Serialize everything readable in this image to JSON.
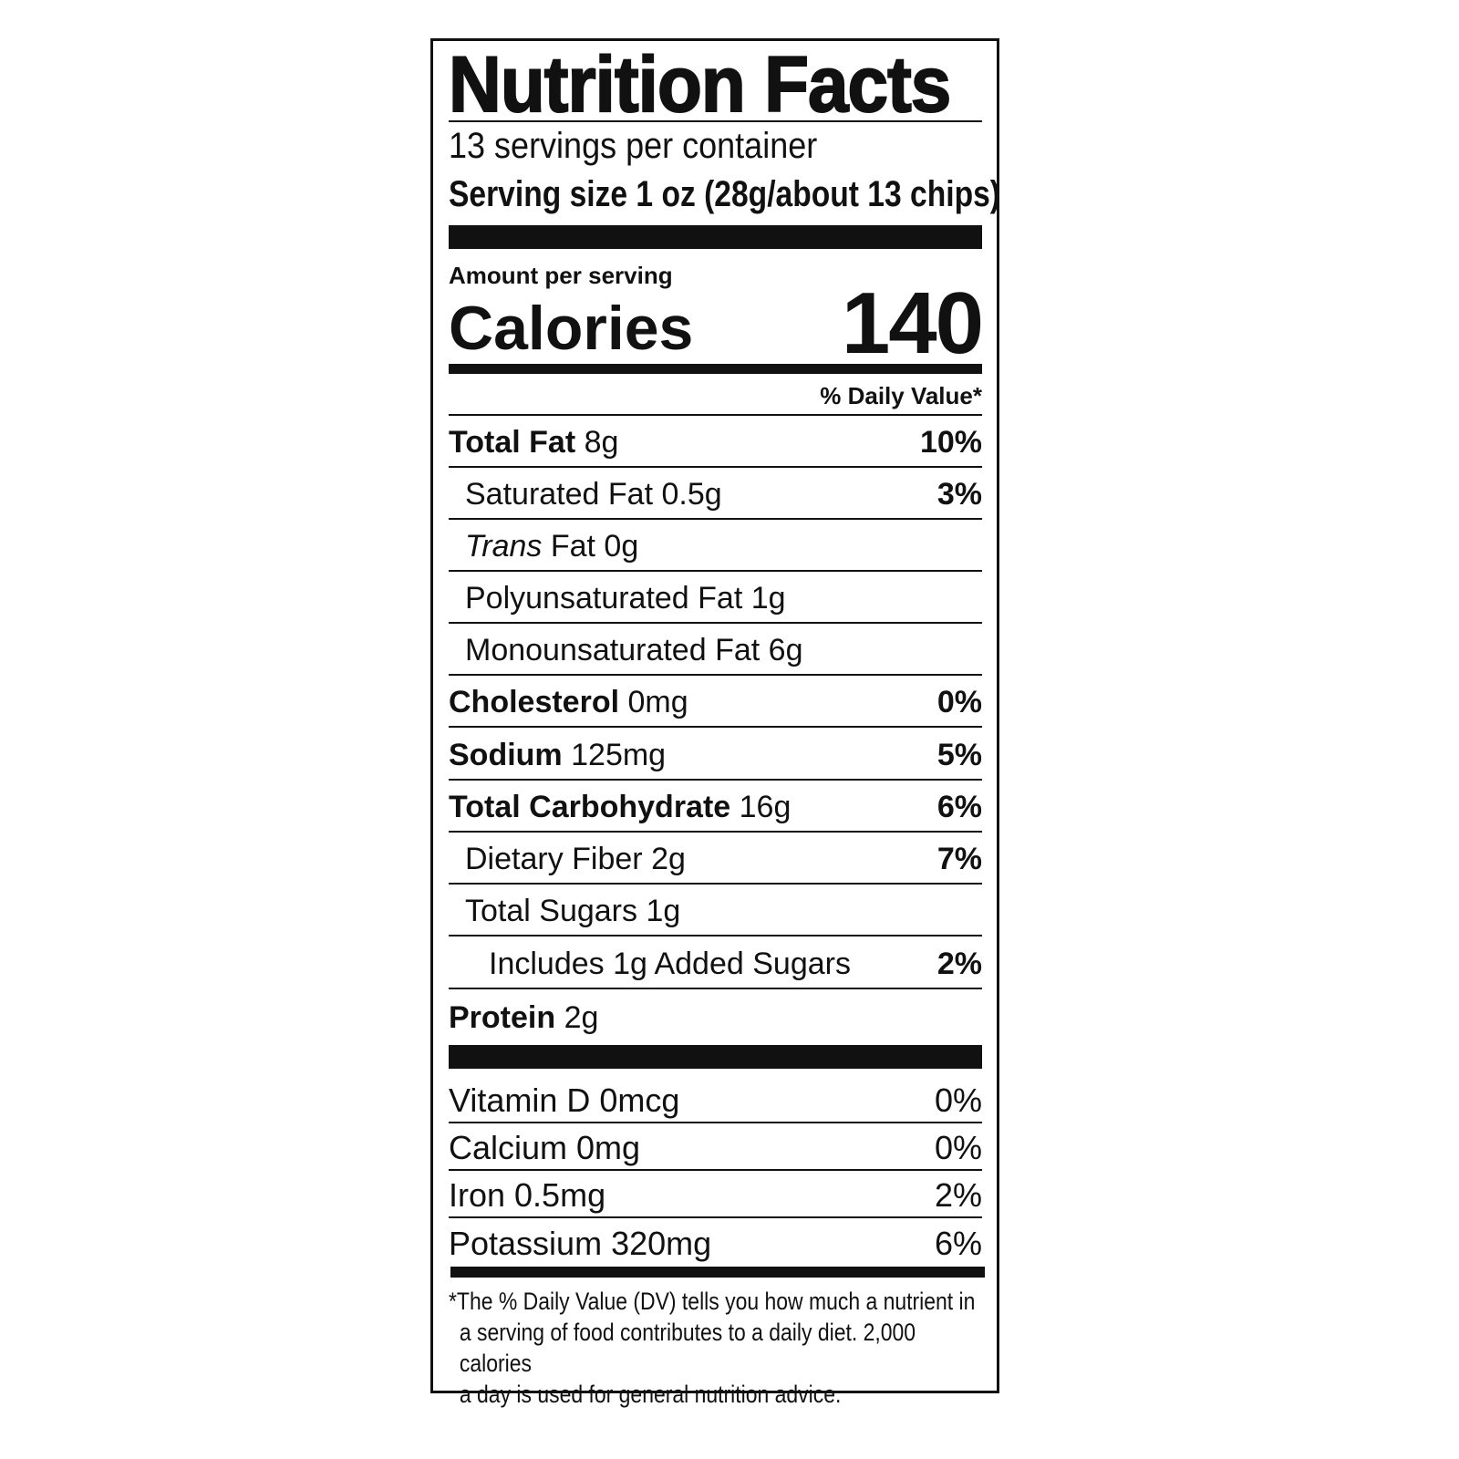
{
  "title": "Nutrition Facts",
  "servings_per_container": "13 servings per container",
  "serving_size": "Serving size 1 oz (28g/about 13 chips)",
  "amount_per_serving": "Amount per serving",
  "calories_label": "Calories",
  "calories_value": "140",
  "daily_value_header": "% Daily Value*",
  "nutrients": [
    {
      "name": "Total Fat",
      "amount": "8g",
      "dv": "10%"
    },
    {
      "name": "Saturated Fat",
      "amount": "0.5g",
      "dv": "3%"
    },
    {
      "name": "Trans",
      "name_rest": "Fat",
      "amount": "0g",
      "dv": ""
    },
    {
      "name": "Polyunsaturated Fat",
      "amount": "1g",
      "dv": ""
    },
    {
      "name": "Monounsaturated Fat",
      "amount": "6g",
      "dv": ""
    },
    {
      "name": "Cholesterol",
      "amount": "0mg",
      "dv": "0%"
    },
    {
      "name": "Sodium",
      "amount": "125mg",
      "dv": "5%"
    },
    {
      "name": "Total Carbohydrate",
      "amount": "16g",
      "dv": "6%"
    },
    {
      "name": "Dietary Fiber",
      "amount": "2g",
      "dv": "7%"
    },
    {
      "name": "Total Sugars",
      "amount": "1g",
      "dv": ""
    },
    {
      "name": "Includes 1g Added Sugars",
      "amount": "",
      "dv": "2%"
    },
    {
      "name": "Protein",
      "amount": "2g",
      "dv": ""
    }
  ],
  "vitamins": [
    {
      "label": "Vitamin D 0mcg",
      "dv": "0%"
    },
    {
      "label": "Calcium 0mg",
      "dv": "0%"
    },
    {
      "label": "Iron 0.5mg",
      "dv": "2%"
    },
    {
      "label": "Potassium 320mg",
      "dv": "6%"
    }
  ],
  "footnote": [
    "*The % Daily Value (DV) tells you how much a nutrient in",
    "a serving of food contributes to a daily diet. 2,000 calories",
    "a day is used for general nutrition advice."
  ]
}
